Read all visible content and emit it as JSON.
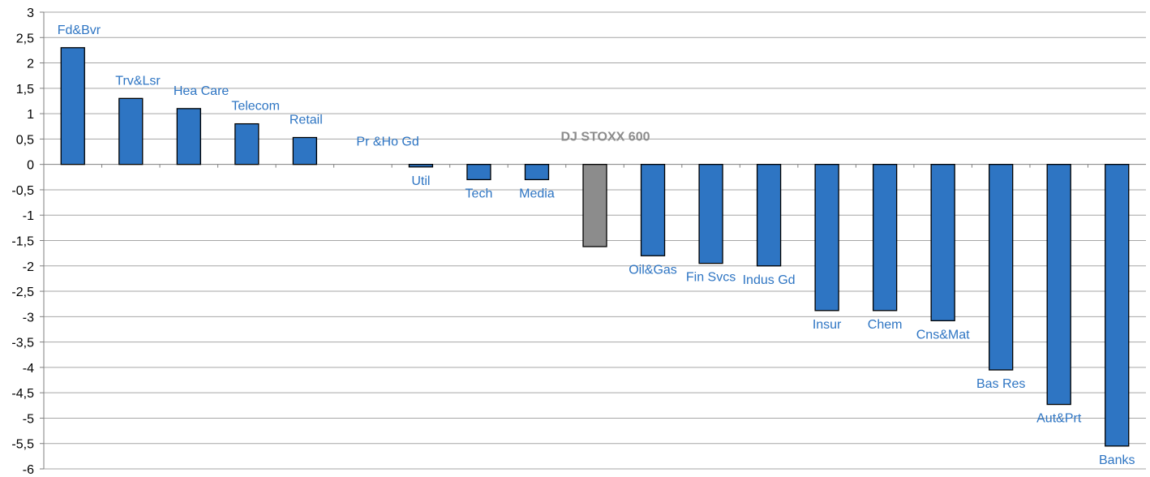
{
  "chart_data": {
    "type": "bar",
    "title": "",
    "xlabel": "",
    "ylabel": "",
    "ylim": [
      -6,
      3
    ],
    "ytick_step": 0.5,
    "grid": true,
    "legend": "none",
    "colors": {
      "bar": "#2e75c3",
      "highlight": "#8c8c8c",
      "label": "#2e75c3",
      "grid": "#a6a6a6"
    },
    "categories": [
      "Fd&Bvr",
      "Trv&Lsr",
      "Hea Care",
      "Telecom",
      "Retail",
      "Pr &Ho Gd",
      "Util",
      "Tech",
      "Media",
      "DJ STOXX 600",
      "Oil&Gas",
      "Fin Svcs",
      "Indus Gd",
      "Insur",
      "Chem",
      "Cns&Mat",
      "Bas Res",
      "Aut&Prt",
      "Banks"
    ],
    "values": [
      2.3,
      1.3,
      1.1,
      0.8,
      0.53,
      0.0,
      -0.05,
      -0.3,
      -0.3,
      -1.62,
      -1.8,
      -1.95,
      -2.0,
      -2.88,
      -2.88,
      -3.08,
      -4.05,
      -4.73,
      -5.55
    ],
    "highlight_index": 9,
    "ytick_labels": [
      "3",
      "2,5",
      "2",
      "1,5",
      "1",
      "0,5",
      "0",
      "-0,5",
      "-1",
      "-1,5",
      "-2",
      "-2,5",
      "-3",
      "-3,5",
      "-4",
      "-4,5",
      "-5",
      "-5,5",
      "-6"
    ]
  }
}
